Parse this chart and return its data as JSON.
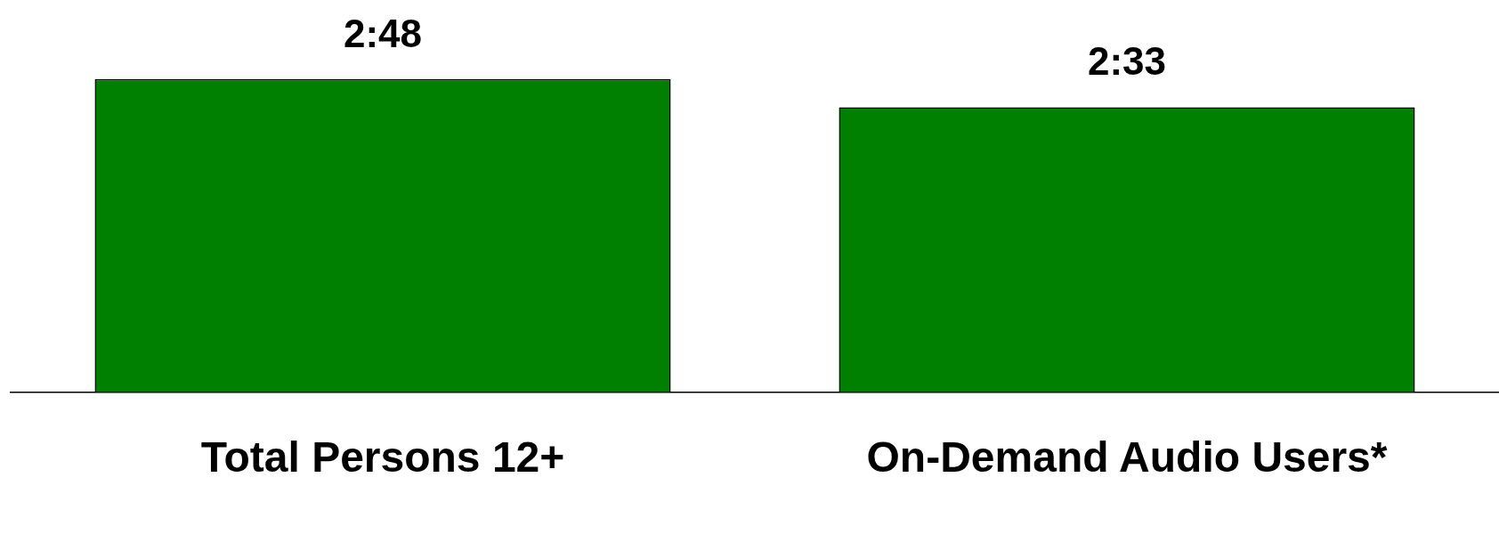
{
  "chart_data": {
    "type": "bar",
    "categories": [
      "Total Persons 12+",
      "On-Demand Audio Users*"
    ],
    "values": [
      168,
      153
    ],
    "value_labels": [
      "2:48",
      "2:33"
    ],
    "color": "#008000",
    "grid": false,
    "legend": false,
    "tick_labels": "x"
  }
}
